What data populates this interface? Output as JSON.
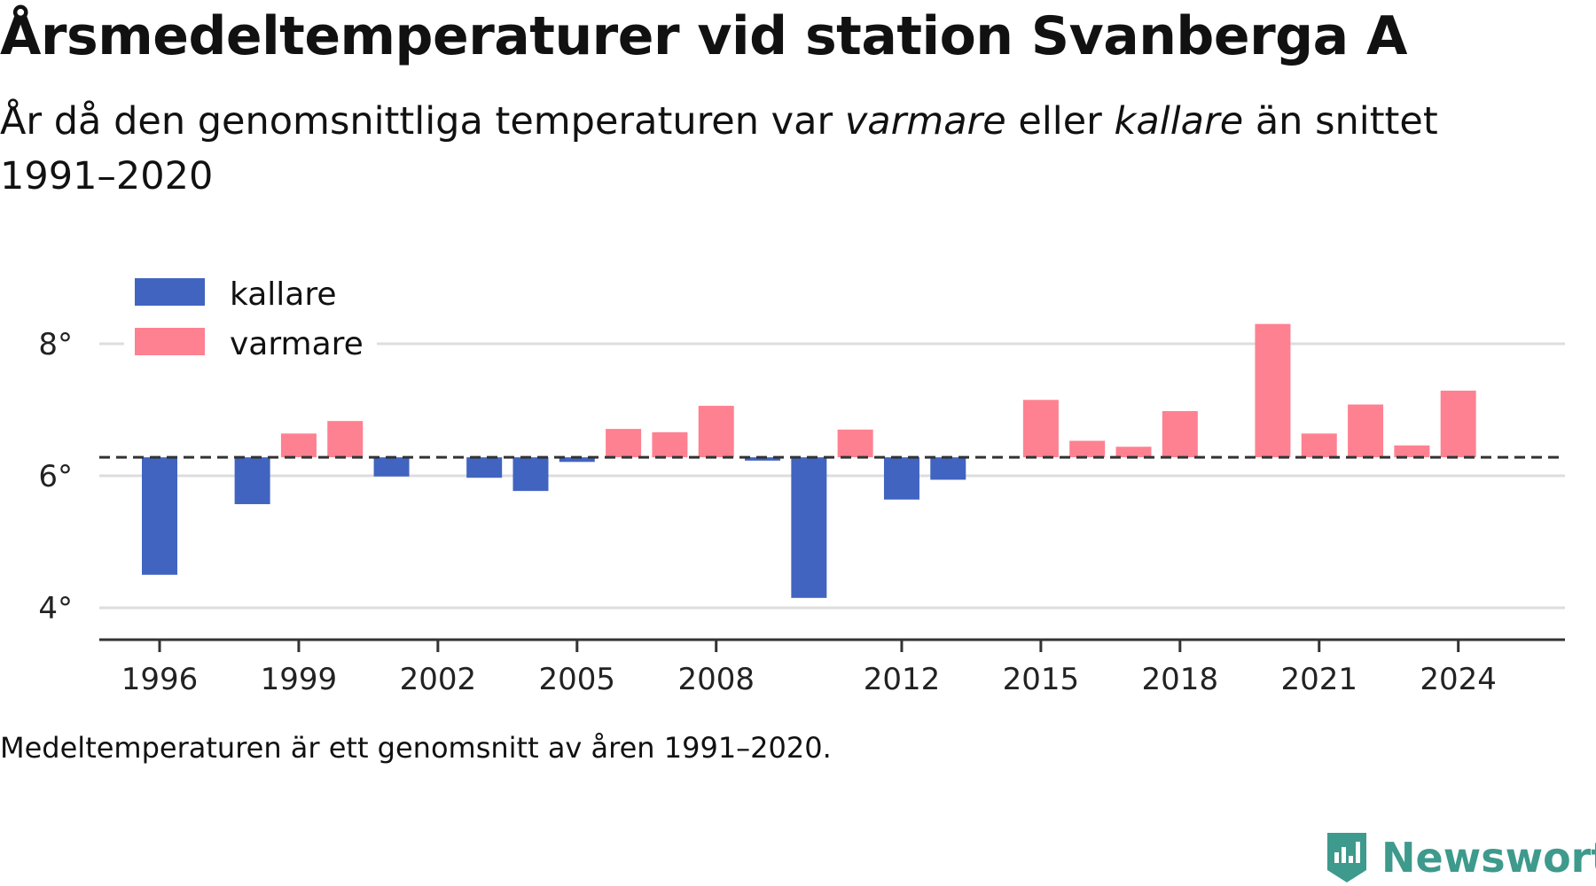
{
  "header": {
    "title": "Årsmedeltemperaturer vid station Svanberga A",
    "subtitle_part1": "År då den genomsnittliga temperaturen var",
    "subtitle_warm_word": "varmare",
    "subtitle_part2": "eller",
    "subtitle_cold_word": "kallare",
    "subtitle_part3": "än snittet 1991–2020"
  },
  "footnote": "Medeltemperaturen är ett genomsnitt av åren 1991–2020.",
  "brand": {
    "name": "Newsworthy",
    "icon": "newsworthy-logo-icon",
    "color": "#3d9a8c"
  },
  "colors": {
    "colder": "#4164c1",
    "warmer": "#fe8191",
    "grid": "#dddddd",
    "baseline": "#333333"
  },
  "chart_data": {
    "type": "bar",
    "baseline": 6.28,
    "baseline_style": "dashed",
    "ylim": [
      3.5,
      8.5
    ],
    "y_ticks": [
      4,
      6,
      8
    ],
    "y_tick_labels": [
      "4°",
      "6°",
      "8°"
    ],
    "x_ticks": [
      1996,
      1999,
      2002,
      2005,
      2008,
      2012,
      2015,
      2018,
      2021,
      2024
    ],
    "grid": true,
    "legend": {
      "placement": "top-left",
      "entries": [
        {
          "label": "kallare",
          "color": "#4164c1"
        },
        {
          "label": "varmare",
          "color": "#fe8191"
        }
      ]
    },
    "x": [
      1996,
      1998,
      1999,
      2000,
      2001,
      2003,
      2004,
      2005,
      2006,
      2007,
      2008,
      2009,
      2010,
      2011,
      2012,
      2013,
      2015,
      2016,
      2017,
      2018,
      2020,
      2021,
      2022,
      2023,
      2024
    ],
    "values": [
      4.5,
      5.57,
      6.64,
      6.83,
      5.99,
      5.97,
      5.77,
      6.21,
      6.71,
      6.66,
      7.06,
      6.23,
      4.15,
      6.7,
      5.64,
      5.94,
      7.15,
      6.53,
      6.44,
      6.98,
      8.3,
      6.64,
      7.08,
      6.46,
      7.29
    ]
  }
}
